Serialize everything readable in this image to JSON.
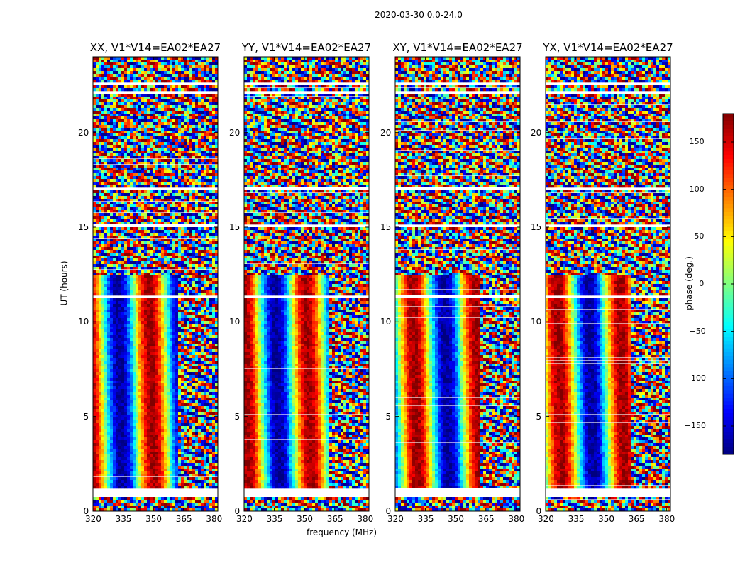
{
  "figure_title": "2020-03-30 0.0-24.0",
  "chart_data": [
    {
      "type": "heatmap",
      "title": "XX, V1*V14=EA02*EA27",
      "xlabel": "",
      "ylabel": "UT (hours)",
      "xlim": [
        320,
        382
      ],
      "ylim": [
        0,
        24
      ],
      "xticks": [
        "320",
        "335",
        "350",
        "365",
        "380"
      ],
      "yticks": [
        "0",
        "5",
        "10",
        "15",
        "20"
      ],
      "z_label": "phase (deg.)"
    },
    {
      "type": "heatmap",
      "title": "YY, V1*V14=EA02*EA27",
      "xlabel": "frequency (MHz)",
      "ylabel": "",
      "xlim": [
        320,
        382
      ],
      "ylim": [
        0,
        24
      ],
      "xticks": [
        "320",
        "335",
        "350",
        "365",
        "380"
      ],
      "yticks": [
        "0",
        "5",
        "10",
        "15",
        "20"
      ],
      "z_label": "phase (deg.)"
    },
    {
      "type": "heatmap",
      "title": "XY, V1*V14=EA02*EA27",
      "xlabel": "",
      "ylabel": "",
      "xlim": [
        320,
        382
      ],
      "ylim": [
        0,
        24
      ],
      "xticks": [
        "320",
        "335",
        "350",
        "365",
        "380"
      ],
      "yticks": [
        "0",
        "5",
        "10",
        "15",
        "20"
      ],
      "z_label": "phase (deg.)"
    },
    {
      "type": "heatmap",
      "title": "YX, V1*V14=EA02*EA27",
      "xlabel": "",
      "ylabel": "",
      "xlim": [
        320,
        382
      ],
      "ylim": [
        0,
        24
      ],
      "xticks": [
        "320",
        "335",
        "350",
        "365",
        "380"
      ],
      "yticks": [
        "0",
        "5",
        "10",
        "15",
        "20"
      ],
      "z_label": "phase (deg.)"
    }
  ],
  "colorbar": {
    "label": "phase (deg.)",
    "colormap": "jet",
    "range": [
      -180,
      180
    ],
    "ticks": [
      "150",
      "100",
      "50",
      "0",
      "−50",
      "−100",
      "−150"
    ],
    "tick_values": [
      150,
      100,
      50,
      0,
      -50,
      -100,
      -150
    ]
  },
  "colors": {
    "background": "#ffffff",
    "axes": "#000000"
  }
}
